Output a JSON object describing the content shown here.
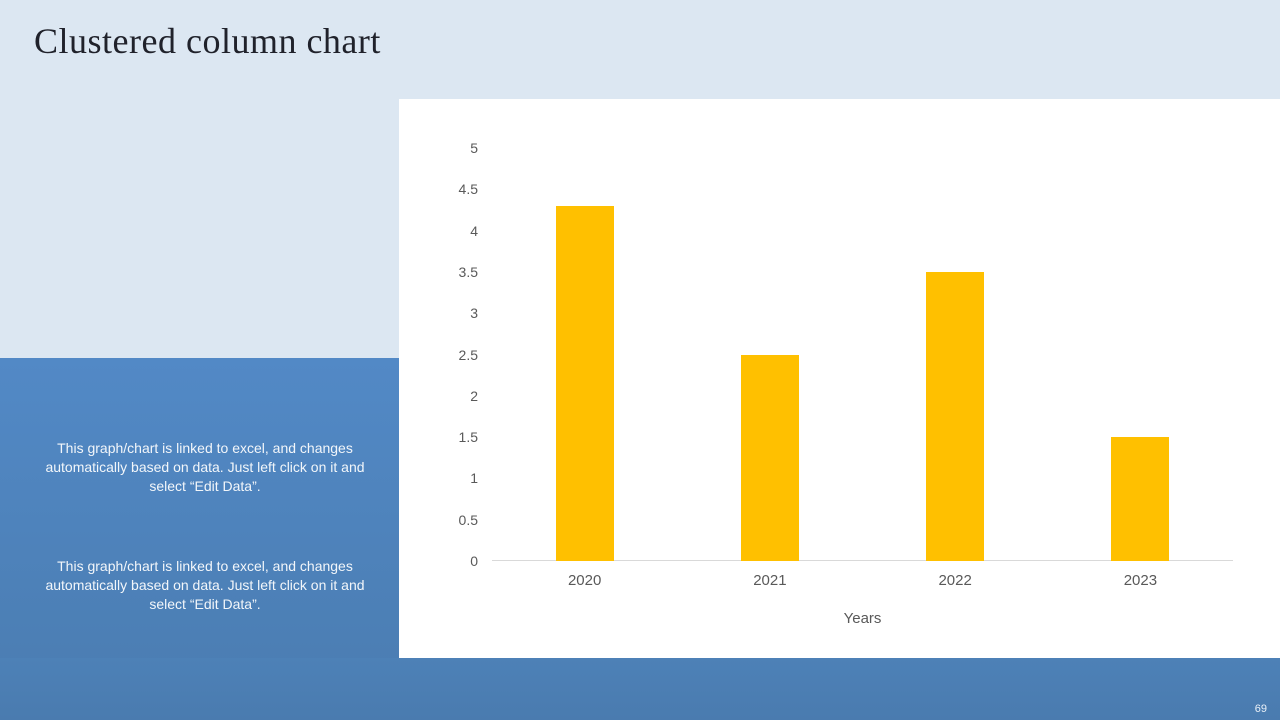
{
  "slide": {
    "title": "Clustered column chart",
    "page_number": "69",
    "info_blocks": [
      "This graph/chart is linked to excel, and changes automatically based on data. Just left click on it and select “Edit Data”.",
      "This graph/chart is linked to excel, and changes automatically based on data. Just left click on it and select “Edit Data”."
    ]
  },
  "colors": {
    "top_band": "#dce7f2",
    "panel_blue_top": "#5289c6",
    "panel_blue_bottom": "#4a7cb0",
    "bar": "#ffc000",
    "axis_line": "#d9d9d9",
    "axis_text": "#595959",
    "title_text": "#20222b",
    "body_text": "#f2f6fa"
  },
  "chart_data": {
    "type": "bar",
    "categories": [
      "2020",
      "2021",
      "2022",
      "2023"
    ],
    "values": [
      4.3,
      2.5,
      3.5,
      1.5
    ],
    "yticks": [
      "0",
      "0.5",
      "1",
      "1.5",
      "2",
      "2.5",
      "3",
      "3.5",
      "4",
      "4.5",
      "5"
    ],
    "ylim": [
      0,
      5
    ],
    "title": "",
    "xlabel": "Years",
    "ylabel": "",
    "grid": false,
    "legend": false,
    "bar_color": "#ffc000"
  }
}
